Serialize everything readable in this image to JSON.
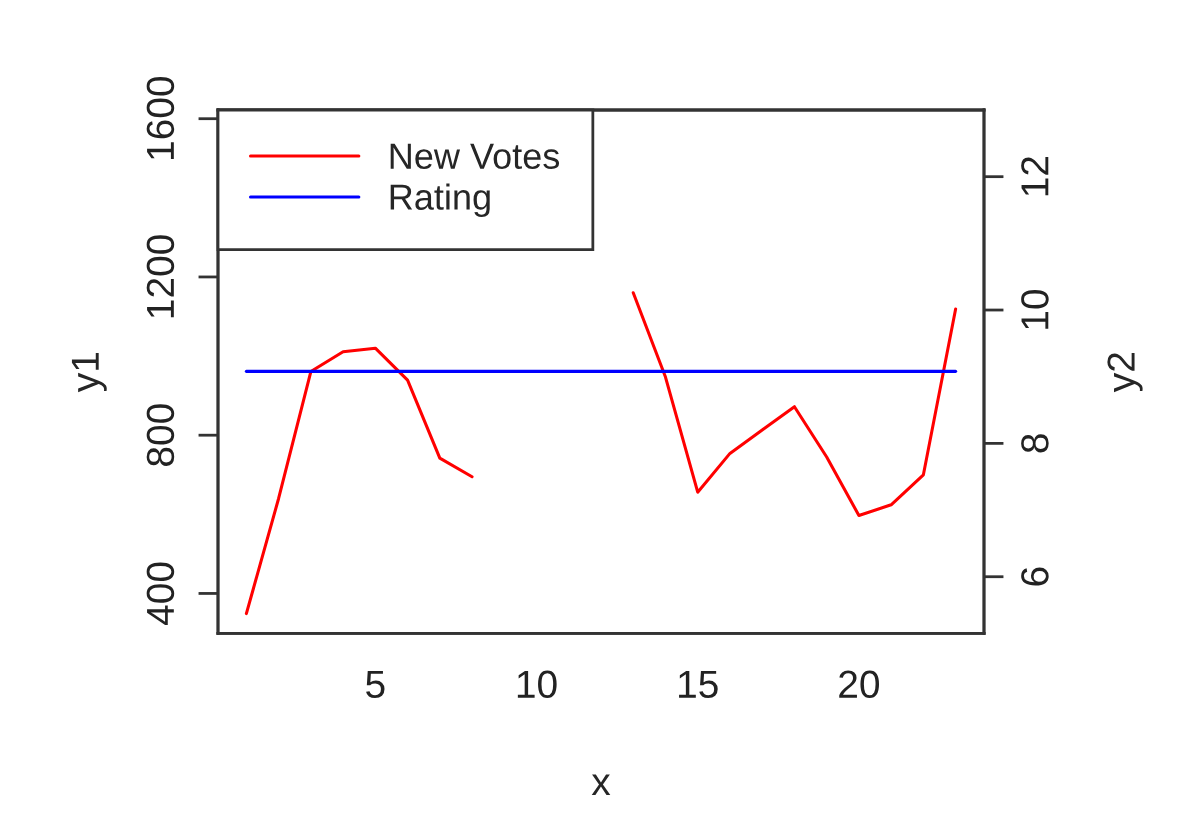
{
  "chart_data": {
    "type": "line",
    "xlabel": "x",
    "ylabel": "y1",
    "y2label": "y2",
    "x": [
      1,
      2,
      3,
      4,
      5,
      6,
      7,
      8,
      9,
      10,
      11,
      12,
      13,
      14,
      15,
      16,
      17,
      18,
      19,
      20,
      21,
      22,
      23
    ],
    "series": [
      {
        "name": "New Votes",
        "color": "#ff0000",
        "values": [
          349,
          640,
          961,
          1011,
          1020,
          939,
          742,
          695,
          null,
          null,
          null,
          null,
          1160,
          947,
          656,
          754,
          813,
          872,
          745,
          597,
          624,
          700,
          1119
        ]
      },
      {
        "name": "Rating",
        "color": "#0000ff",
        "axis": "y2",
        "values": [
          9.08,
          9.08,
          9.08,
          9.08,
          9.08,
          9.08,
          9.08,
          9.08,
          9.08,
          9.08,
          9.08,
          9.08,
          9.08,
          9.08,
          9.08,
          9.08,
          9.08,
          9.08,
          9.08,
          9.08,
          9.08,
          9.08,
          9.08
        ]
      }
    ],
    "xlim": [
      0.12,
      23.88
    ],
    "xticks": [
      5,
      10,
      15,
      20
    ],
    "ylim": [
      299,
      1622
    ],
    "yticks": [
      400,
      800,
      1200,
      1600
    ],
    "y2lim": [
      5.15,
      13.0
    ],
    "y2ticks": [
      6,
      8,
      10,
      12
    ],
    "legend": "top left",
    "grid": false,
    "marker": "none",
    "line_style": "solid"
  }
}
